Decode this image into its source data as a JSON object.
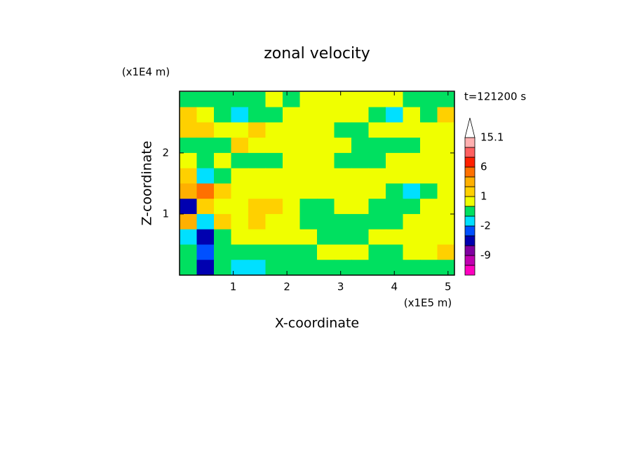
{
  "chart_data": {
    "type": "contour",
    "title": "zonal velocity",
    "x_label": "X-coordinate",
    "y_label": "Z-coordinate",
    "x_unit": "(x1E5 m)",
    "y_unit": "(x1E4 m)",
    "time_label": "t=121200 s",
    "xlim": [
      0,
      5.12
    ],
    "ylim": [
      0,
      3.01
    ],
    "xticks": [
      1,
      2,
      3,
      4,
      5
    ],
    "yticks": [
      1,
      2
    ],
    "x": [
      0.16,
      0.48,
      0.8,
      1.12,
      1.44,
      1.76,
      2.08,
      2.4,
      2.72,
      3.04,
      3.36,
      3.68,
      4.0,
      4.32,
      4.64,
      4.96
    ],
    "y": [
      2.875,
      2.625,
      2.375,
      2.125,
      1.875,
      1.625,
      1.375,
      1.125,
      0.875,
      0.625,
      0.375,
      0.125
    ],
    "z": [
      [
        -0.5,
        -0.5,
        -0.5,
        -0.5,
        -0.5,
        0.5,
        -0.5,
        0.5,
        0.5,
        0.5,
        0.5,
        0.5,
        0.5,
        -0.5,
        -0.5,
        -0.5
      ],
      [
        1.5,
        0.5,
        -0.5,
        -1.5,
        -0.5,
        -0.5,
        0.5,
        0.5,
        0.5,
        0.5,
        0.5,
        -0.5,
        -1.5,
        0.5,
        -0.5,
        1.5
      ],
      [
        1.5,
        1.5,
        0.5,
        0.5,
        1.5,
        0.5,
        0.5,
        0.5,
        0.5,
        -0.5,
        -0.5,
        0.5,
        0.5,
        0.5,
        0.5,
        0.5
      ],
      [
        -0.5,
        -0.5,
        -0.5,
        1.5,
        0.5,
        0.5,
        0.5,
        0.5,
        0.5,
        0.5,
        -0.5,
        -0.5,
        -0.5,
        -0.5,
        0.5,
        0.5
      ],
      [
        0.5,
        -0.5,
        0.5,
        -0.5,
        -0.5,
        -0.5,
        0.5,
        0.5,
        0.5,
        -0.5,
        -0.5,
        -0.5,
        0.5,
        0.5,
        0.5,
        0.5
      ],
      [
        1.5,
        -1.5,
        -0.5,
        0.5,
        0.5,
        0.5,
        0.5,
        0.5,
        0.5,
        0.5,
        0.5,
        0.5,
        0.5,
        0.5,
        0.5,
        0.5
      ],
      [
        2.5,
        4,
        1.5,
        0.5,
        0.5,
        0.5,
        0.5,
        0.5,
        0.5,
        0.5,
        0.5,
        0.5,
        -0.5,
        -1.5,
        -0.5,
        0.5
      ],
      [
        -4,
        1.5,
        0.5,
        0.5,
        1.5,
        1.5,
        0.5,
        -0.5,
        -0.5,
        0.5,
        0.5,
        -0.5,
        -0.5,
        -0.5,
        0.5,
        0.5
      ],
      [
        2.5,
        -1.5,
        1.5,
        0.5,
        1.5,
        0.5,
        0.5,
        -0.5,
        -0.5,
        -0.5,
        -0.5,
        -0.5,
        -0.5,
        0.5,
        0.5,
        0.5
      ],
      [
        -1.5,
        -4,
        -0.5,
        0.5,
        0.5,
        0.5,
        0.5,
        0.5,
        -0.5,
        -0.5,
        -0.5,
        0.5,
        0.5,
        0.5,
        0.5,
        0.5
      ],
      [
        -0.5,
        -2.5,
        -0.5,
        -0.5,
        -0.5,
        -0.5,
        -0.5,
        -0.5,
        0.5,
        0.5,
        0.5,
        -0.5,
        -0.5,
        0.5,
        0.5,
        1.5
      ],
      [
        -0.5,
        -4,
        -0.5,
        -1.5,
        -1.5,
        -0.5,
        -0.5,
        -0.5,
        -0.5,
        -0.5,
        -0.5,
        -0.5,
        -0.5,
        -0.5,
        -0.5,
        -0.5
      ]
    ],
    "levels": [
      -15,
      -12,
      -9,
      -6,
      -3,
      -2,
      -1,
      0,
      1,
      2,
      3,
      6,
      9,
      12,
      15.1
    ],
    "colors": [
      "#ff00c0",
      "#c000b0",
      "#8000a0",
      "#0000b0",
      "#0050ff",
      "#00e0ff",
      "#00e060",
      "#f0ff00",
      "#ffd000",
      "#ffb000",
      "#ff7000",
      "#ff2000",
      "#ff6060",
      "#ffb0b0"
    ],
    "colorbar_ticks": [
      -9,
      -2,
      1,
      6,
      15.1
    ]
  }
}
